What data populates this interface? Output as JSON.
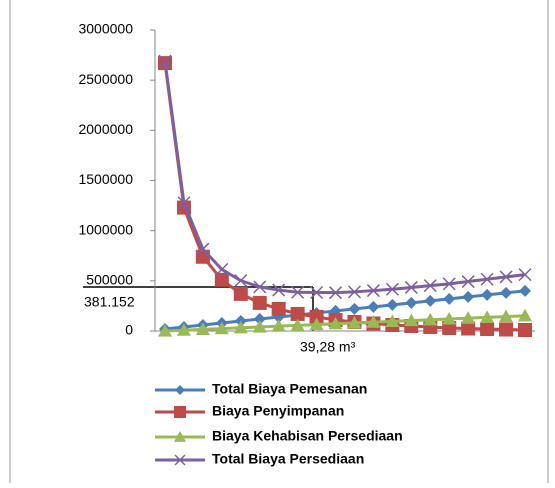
{
  "chart_data": {
    "type": "line",
    "categories": [
      null,
      null,
      null,
      null,
      null,
      null,
      null,
      null,
      null,
      null,
      null,
      null,
      null,
      null,
      null,
      null,
      null,
      null,
      null,
      null
    ],
    "series": [
      {
        "name": "Total Biaya Pemesanan",
        "color": "#4a7ebb",
        "marker": "diamond",
        "values": [
          20000,
          40000,
          60000,
          80000,
          100000,
          120000,
          140000,
          160000,
          180000,
          200000,
          220000,
          240000,
          260000,
          280000,
          300000,
          320000,
          340000,
          360000,
          380000,
          400000
        ]
      },
      {
        "name": "Biaya Penyimpanan",
        "color": "#be4b48",
        "marker": "square",
        "values": [
          2670000,
          1230000,
          740000,
          510000,
          370000,
          280000,
          220000,
          170000,
          140000,
          110000,
          90000,
          75000,
          60000,
          50000,
          40000,
          30000,
          25000,
          20000,
          15000,
          10000
        ]
      },
      {
        "name": "Biaya Kehabisan Persediaan",
        "color": "#98b954",
        "marker": "triangle",
        "values": [
          0,
          8000,
          16000,
          24000,
          32000,
          40000,
          48000,
          56000,
          64000,
          72000,
          80000,
          88000,
          96000,
          104000,
          112000,
          120000,
          128000,
          136000,
          144000,
          152000
        ]
      },
      {
        "name": "Total Biaya Persediaan",
        "color": "#7d5fa0",
        "marker": "x",
        "values": [
          2690000,
          1278000,
          816000,
          614000,
          502000,
          440000,
          408000,
          386000,
          384000,
          382000,
          390000,
          403000,
          416000,
          434000,
          452000,
          470000,
          493000,
          516000,
          539000,
          562000
        ]
      }
    ],
    "ylim": [
      0,
      3000000
    ],
    "yticks": [
      0,
      500000,
      1000000,
      1500000,
      2000000,
      2500000,
      3000000
    ],
    "annotations": [
      "381.152",
      "39,28 m³"
    ],
    "grid": false
  }
}
